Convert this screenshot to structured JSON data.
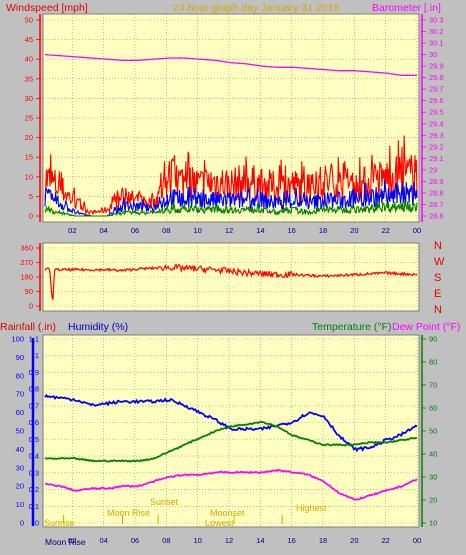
{
  "header": {
    "windspeed_label": "Windspeed [mph]",
    "center_title": "24 hour graph day   January 31 2016",
    "barometer_label": "Barometer [.in]"
  },
  "middle": {
    "rainfall_label": "Rainfall (.in)",
    "humidity_label": "Humidity (%)",
    "temperature_label": "Temperature (°F)",
    "dewpoint_label": "Dew Point (°F)"
  },
  "directions": [
    "N",
    "W",
    "S",
    "E",
    "N"
  ],
  "bottom": {
    "moon_rise_label": "Moon Rise",
    "labels": [
      "Sunrise",
      "Moon Rise",
      "Sunset",
      "Moonset",
      "Lowest",
      "Highest"
    ]
  },
  "colors": {
    "background": "#c0c0c0",
    "panel": "#ffffc0",
    "grid": "#909090",
    "wind": "#ff0000",
    "gust_blue": "#0000ff",
    "avg_green": "#008000",
    "barometer": "#ff00ff",
    "humidity": "#0000ff",
    "temperature": "#008000",
    "dewpoint": "#ff00ff",
    "rain": "#0000ff",
    "gold": "#d4a800"
  },
  "chart_data": [
    {
      "type": "line",
      "title": "24 hour graph day   January 31 2016",
      "x_ticks": [
        "02",
        "04",
        "06",
        "08",
        "10",
        "12",
        "14",
        "16",
        "18",
        "20",
        "22",
        "00"
      ],
      "left_axis": {
        "label": "Windspeed [mph]",
        "ylim": [
          0,
          50
        ],
        "ticks": [
          0,
          5,
          10,
          15,
          20,
          25,
          30,
          35,
          40,
          45,
          50
        ]
      },
      "right_axis": {
        "label": "Barometer [.in]",
        "ylim": [
          28.6,
          30.3
        ],
        "ticks": [
          "28.6",
          "28.7",
          "28.8",
          "28.9",
          "29",
          "29.1",
          "29.2",
          "29.3",
          "29.4",
          "29.5",
          "29.6",
          "29.7",
          "29.8",
          "29.9",
          "30",
          "30.1",
          "30.2",
          "30.3"
        ]
      },
      "series": [
        {
          "name": "Barometer",
          "axis": "right",
          "x": [
            0,
            1,
            2,
            3,
            4,
            5,
            6,
            7,
            8,
            9,
            10,
            11,
            12,
            13,
            14,
            15,
            16,
            17,
            18,
            19,
            20,
            21,
            22,
            23,
            24
          ],
          "values": [
            30.0,
            29.99,
            29.98,
            29.97,
            29.96,
            29.95,
            29.95,
            29.96,
            29.97,
            29.97,
            29.96,
            29.95,
            29.93,
            29.92,
            29.9,
            29.89,
            29.89,
            29.88,
            29.87,
            29.86,
            29.86,
            29.85,
            29.84,
            29.82,
            29.82
          ]
        },
        {
          "name": "Windspeed peak",
          "axis": "left",
          "x": [
            0,
            1,
            2,
            3,
            4,
            5,
            6,
            7,
            8,
            9,
            10,
            11,
            12,
            13,
            14,
            15,
            16,
            17,
            18,
            19,
            20,
            21,
            22,
            23,
            24
          ],
          "values": [
            12,
            9,
            4,
            1,
            2,
            6,
            5,
            4,
            12,
            11,
            10,
            11,
            10,
            11,
            10,
            9,
            10,
            8,
            11,
            10,
            9,
            11,
            12,
            13,
            13
          ]
        },
        {
          "name": "Wind gust",
          "axis": "left",
          "x": [
            0,
            1,
            2,
            3,
            4,
            5,
            6,
            7,
            8,
            9,
            10,
            11,
            12,
            13,
            14,
            15,
            16,
            17,
            18,
            19,
            20,
            21,
            22,
            23,
            24
          ],
          "values": [
            6,
            4,
            1,
            0,
            0,
            3,
            3,
            2,
            6,
            5,
            5,
            5,
            5,
            5,
            5,
            4,
            5,
            4,
            5,
            5,
            5,
            6,
            6,
            7,
            7
          ]
        },
        {
          "name": "Wind avg",
          "axis": "left",
          "x": [
            0,
            1,
            2,
            3,
            4,
            5,
            6,
            7,
            8,
            9,
            10,
            11,
            12,
            13,
            14,
            15,
            16,
            17,
            18,
            19,
            20,
            21,
            22,
            23,
            24
          ],
          "values": [
            2,
            1,
            0,
            0,
            0,
            1,
            1,
            1,
            2,
            2,
            2,
            2,
            2,
            2,
            2,
            1,
            2,
            1,
            2,
            2,
            2,
            2,
            3,
            3,
            3
          ]
        }
      ]
    },
    {
      "type": "line",
      "directions_axis": [
        "N",
        "W",
        "S",
        "E",
        "N"
      ],
      "left_axis": {
        "ylim": [
          0,
          360
        ],
        "ticks": [
          0,
          90,
          180,
          270,
          360
        ]
      },
      "series": [
        {
          "name": "Wind direction",
          "x": [
            0,
            0.3,
            0.5,
            0.6,
            0.7,
            1,
            2,
            3,
            4,
            5,
            6,
            7,
            8,
            9,
            10,
            11,
            12,
            13,
            14,
            15,
            16,
            17,
            18,
            19,
            20,
            21,
            22,
            23,
            24
          ],
          "values": [
            225,
            230,
            0,
            230,
            225,
            225,
            225,
            225,
            225,
            220,
            230,
            235,
            240,
            235,
            230,
            225,
            215,
            205,
            200,
            195,
            195,
            190,
            185,
            190,
            195,
            200,
            205,
            200,
            195
          ]
        }
      ]
    },
    {
      "type": "line",
      "x_ticks": [
        "02",
        "04",
        "06",
        "08",
        "10",
        "12",
        "14",
        "16",
        "18",
        "20",
        "22",
        "00"
      ],
      "left_axis_humidity": {
        "label": "Humidity (%)",
        "ylim": [
          0,
          100
        ],
        "ticks": [
          0,
          10,
          20,
          30,
          40,
          50,
          60,
          70,
          80,
          90,
          100
        ]
      },
      "left_axis_rain": {
        "label": "Rainfall (.in)",
        "ylim": [
          0,
          1.1
        ],
        "ticks": [
          "0",
          "0.1",
          "0.2",
          "0.3",
          "0.4",
          "0.5",
          "0.6",
          "0.7",
          "0.8",
          "0.9",
          "1",
          "1.1"
        ]
      },
      "right_axis": {
        "label": "Temperature (°F)",
        "ylim": [
          10,
          90
        ],
        "ticks": [
          10,
          20,
          30,
          40,
          50,
          60,
          70,
          80,
          90
        ]
      },
      "series": [
        {
          "name": "Humidity",
          "axis": "left",
          "x": [
            0,
            1,
            2,
            3,
            4,
            5,
            6,
            7,
            8,
            9,
            10,
            11,
            12,
            13,
            14,
            15,
            16,
            17,
            18,
            19,
            20,
            21,
            22,
            23,
            24
          ],
          "values": [
            69,
            68,
            67,
            64,
            65,
            66,
            66,
            66,
            67,
            64,
            60,
            56,
            51,
            51,
            51,
            53,
            55,
            60,
            58,
            47,
            40,
            41,
            45,
            48,
            53
          ]
        },
        {
          "name": "Temperature",
          "axis": "right",
          "x": [
            0,
            1,
            2,
            3,
            4,
            5,
            6,
            7,
            8,
            9,
            10,
            11,
            12,
            13,
            14,
            15,
            16,
            17,
            18,
            19,
            20,
            21,
            22,
            23,
            24
          ],
          "values": [
            38,
            38,
            38,
            37,
            37,
            37,
            37,
            38,
            41,
            44,
            47,
            50,
            52,
            53,
            54,
            52,
            48,
            46,
            44,
            44,
            44,
            45,
            45,
            46,
            47
          ]
        },
        {
          "name": "Dew Point",
          "axis": "right",
          "x": [
            0,
            1,
            2,
            3,
            4,
            5,
            6,
            7,
            8,
            9,
            10,
            11,
            12,
            13,
            14,
            15,
            16,
            17,
            18,
            19,
            20,
            21,
            22,
            23,
            24
          ],
          "values": [
            27,
            26,
            24,
            25,
            25,
            26,
            26,
            28,
            30,
            31,
            31,
            32,
            32,
            32,
            32,
            33,
            32,
            31,
            28,
            23,
            20,
            22,
            24,
            26,
            29
          ]
        }
      ]
    }
  ]
}
